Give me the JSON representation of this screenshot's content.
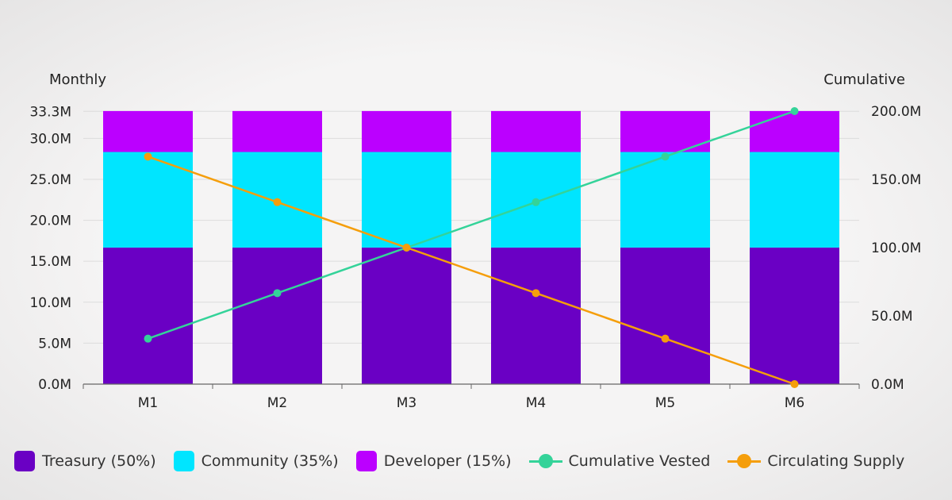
{
  "chart_data": {
    "type": "bar",
    "stacked": true,
    "categories": [
      "M1",
      "M2",
      "M3",
      "M4",
      "M5",
      "M6"
    ],
    "y_left": {
      "label": "Monthly",
      "range": [
        0,
        33.33
      ],
      "ticks": [
        0,
        5,
        10,
        15,
        20,
        25,
        30,
        33.3
      ],
      "tick_labels": [
        "0.0M",
        "5.0M",
        "10.0M",
        "15.0M",
        "20.0M",
        "25.0M",
        "30.0M",
        "33.3M"
      ]
    },
    "y_right": {
      "label": "Cumulative",
      "range": [
        0,
        200
      ],
      "ticks": [
        0,
        50,
        100,
        150,
        200
      ],
      "tick_labels": [
        "0.0M",
        "50.0M",
        "100.0M",
        "150.0M",
        "200.0M"
      ]
    },
    "series": [
      {
        "name": "Treasury (50%)",
        "kind": "bar",
        "axis": "left",
        "color": "#6a00c4",
        "values": [
          16.67,
          16.67,
          16.67,
          16.67,
          16.67,
          16.67
        ]
      },
      {
        "name": "Community (35%)",
        "kind": "bar",
        "axis": "left",
        "color": "#00e5ff",
        "values": [
          11.67,
          11.67,
          11.67,
          11.67,
          11.67,
          11.67
        ]
      },
      {
        "name": "Developer (15%)",
        "kind": "bar",
        "axis": "left",
        "color": "#bb00ff",
        "values": [
          5,
          5,
          5,
          5,
          5,
          5
        ]
      },
      {
        "name": "Cumulative Vested",
        "kind": "line",
        "axis": "right",
        "color": "#34d399",
        "values": [
          33.33,
          66.67,
          100,
          133.33,
          166.67,
          200
        ]
      },
      {
        "name": "Circulating Supply",
        "kind": "line",
        "axis": "right",
        "color": "#f59e0b",
        "values": [
          166.67,
          133.33,
          100,
          66.67,
          33.33,
          0
        ]
      }
    ],
    "grid": true,
    "legend_placement": "bottom"
  }
}
